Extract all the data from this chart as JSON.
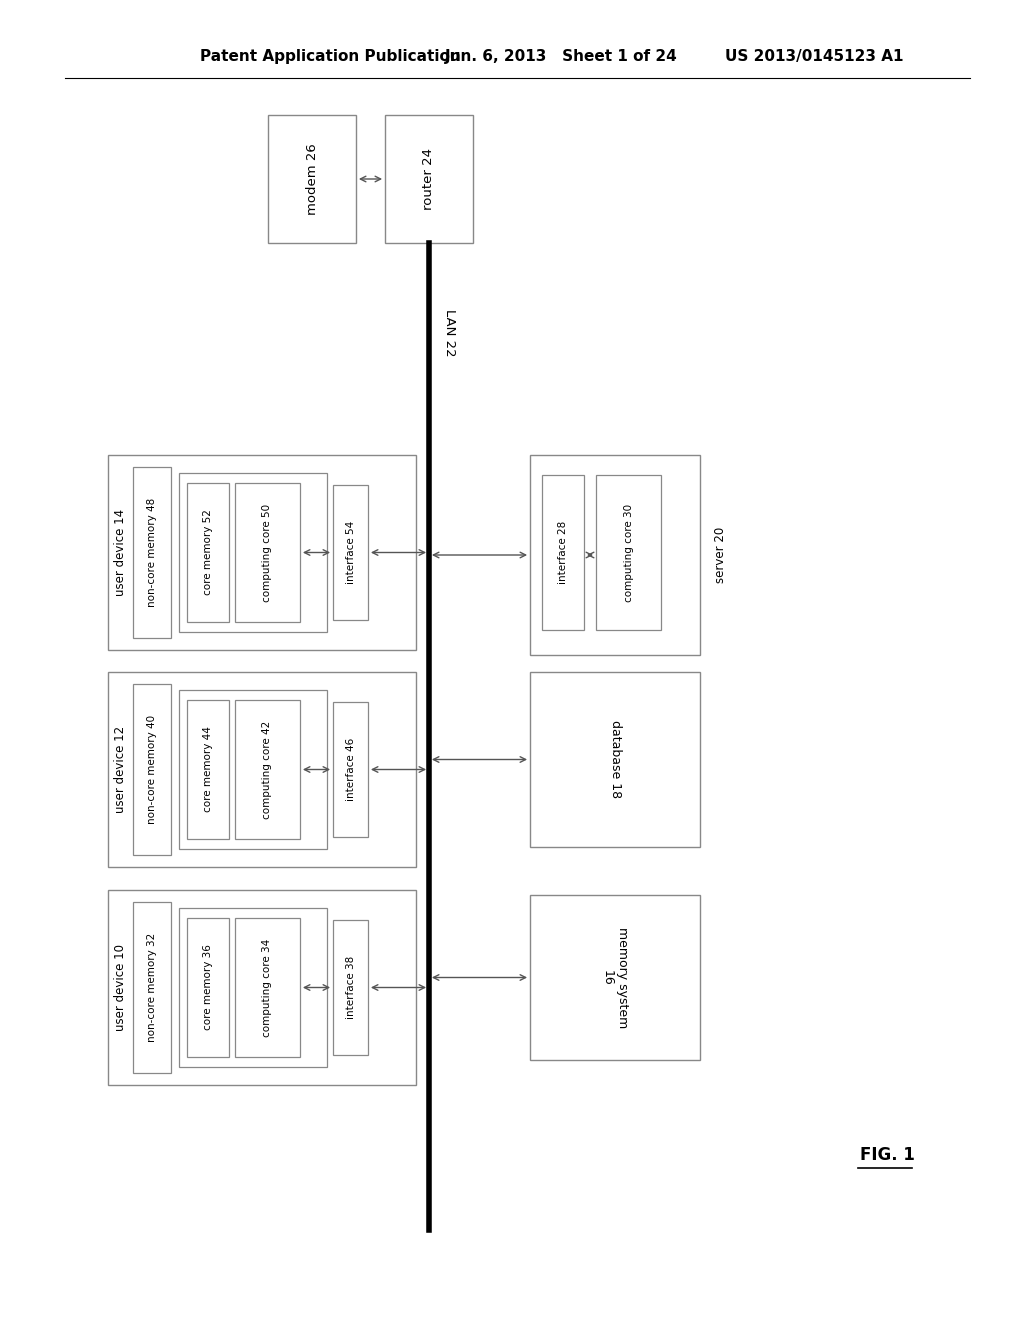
{
  "bg_color": "#ffffff",
  "header_text": "Patent Application Publication",
  "header_date": "Jun. 6, 2013   Sheet 1 of 24",
  "header_patent": "US 2013/0145123 A1",
  "fig_label": "FIG. 1",
  "lan_label": "LAN 22",
  "modem_label": "modem 26",
  "router_label": "router 24",
  "user_devices": [
    {
      "outer_label": "user device 10",
      "ncm_label": "non-core memory 32",
      "cm_label": "core memory 36",
      "cc_label": "computing core 34",
      "iface_label": "interface 38"
    },
    {
      "outer_label": "user device 12",
      "ncm_label": "non-core memory 40",
      "cm_label": "core memory 44",
      "cc_label": "computing core 42",
      "iface_label": "interface 46"
    },
    {
      "outer_label": "user device 14",
      "ncm_label": "non-core memory 48",
      "cm_label": "core memory 52",
      "cc_label": "computing core 50",
      "iface_label": "interface 54"
    }
  ]
}
